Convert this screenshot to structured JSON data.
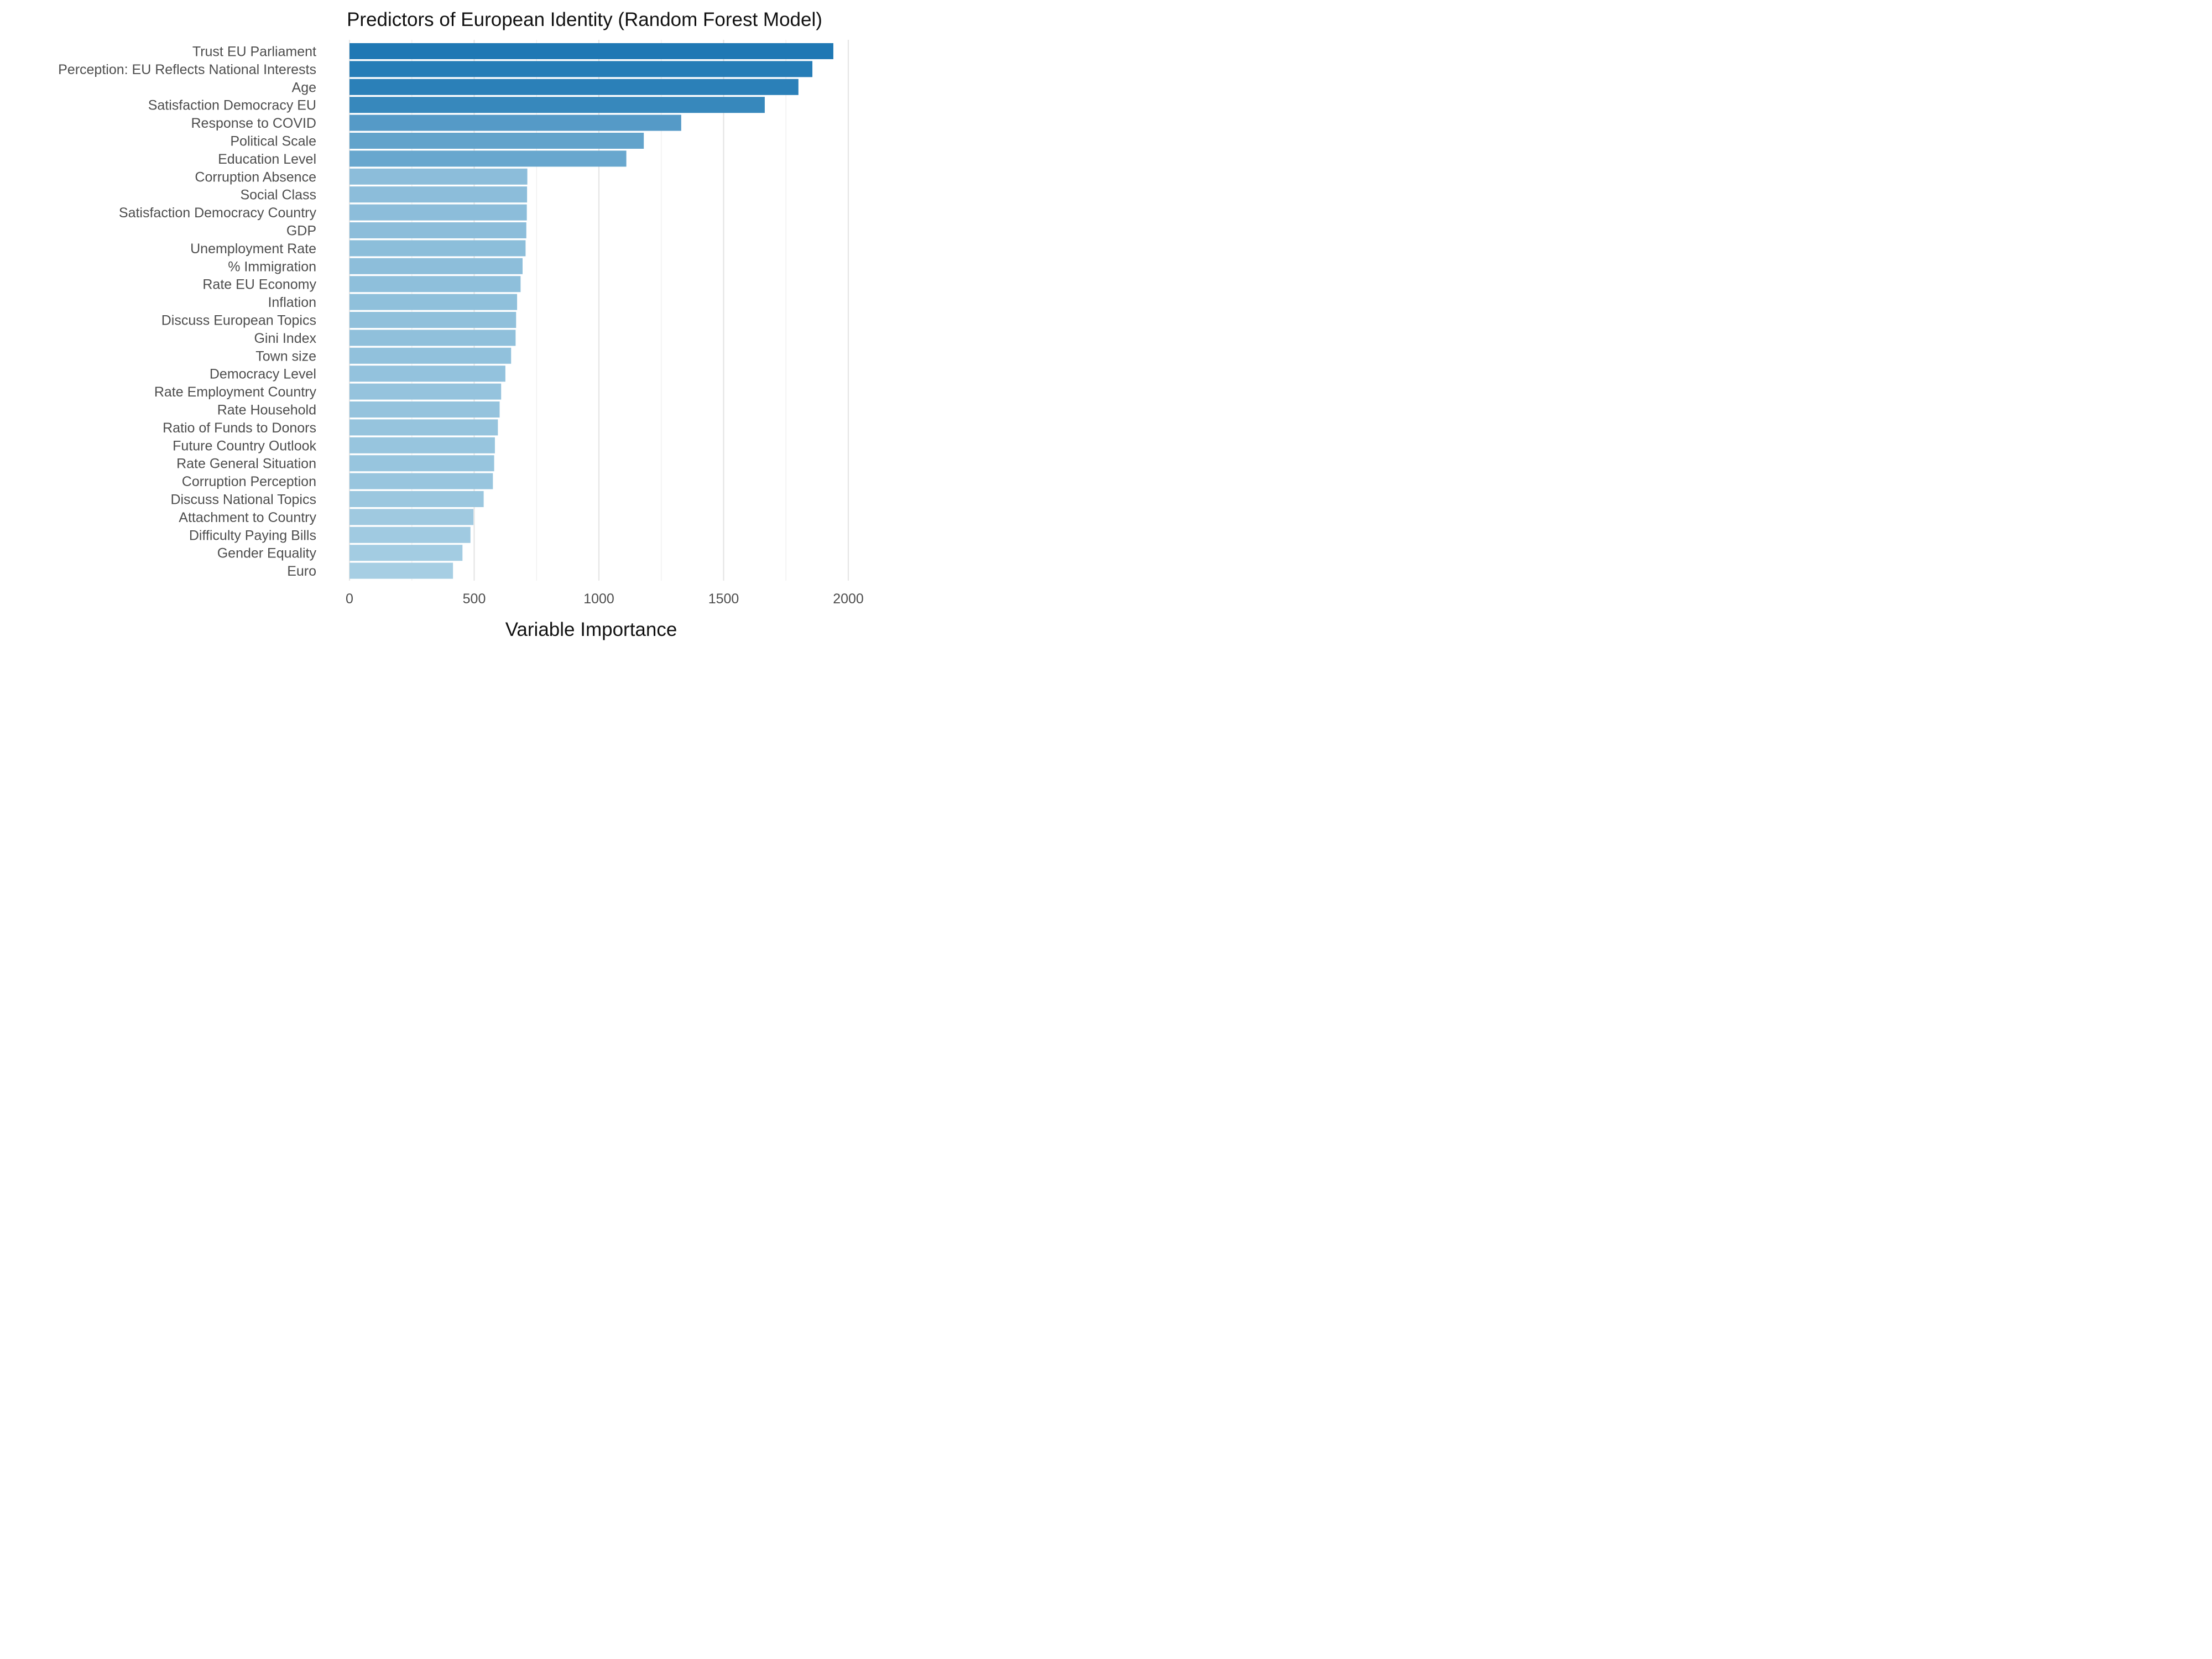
{
  "chart_data": {
    "type": "bar",
    "orientation": "horizontal",
    "title": "Predictors of European Identity (Random Forest Model)",
    "xlabel": "Variable Importance",
    "ylabel": "",
    "xlim": [
      0,
      2000
    ],
    "xticks": [
      0,
      500,
      1000,
      1500,
      2000
    ],
    "grid": true,
    "legend": "none",
    "color_scale": {
      "low": "#a6cee3",
      "high": "#1f78b4"
    },
    "categories": [
      "Trust EU Parliament",
      "Perception: EU Reflects National Interests",
      "Age",
      "Satisfaction Democracy EU",
      "Response to COVID",
      "Political Scale",
      "Education Level",
      "Corruption Absence",
      "Social Class",
      "Satisfaction Democracy Country",
      "GDP",
      "Unemployment Rate",
      "% Immigration",
      "Rate EU Economy",
      "Inflation",
      "Discuss European Topics",
      "Gini Index",
      "Town size",
      "Democracy Level",
      "Rate Employment Country",
      "Rate Household",
      "Ratio of Funds to Donors",
      "Future Country Outlook",
      "Rate General Situation",
      "Corruption Perception",
      "Discuss National Topics",
      "Attachment to Country",
      "Difficulty Paying Bills",
      "Gender Equality",
      "Euro"
    ],
    "values": [
      1940,
      1856,
      1800,
      1665,
      1330,
      1180,
      1110,
      713,
      712,
      711,
      709,
      706,
      694,
      686,
      672,
      668,
      666,
      648,
      625,
      608,
      602,
      595,
      583,
      580,
      575,
      538,
      497,
      485,
      453,
      415
    ]
  }
}
